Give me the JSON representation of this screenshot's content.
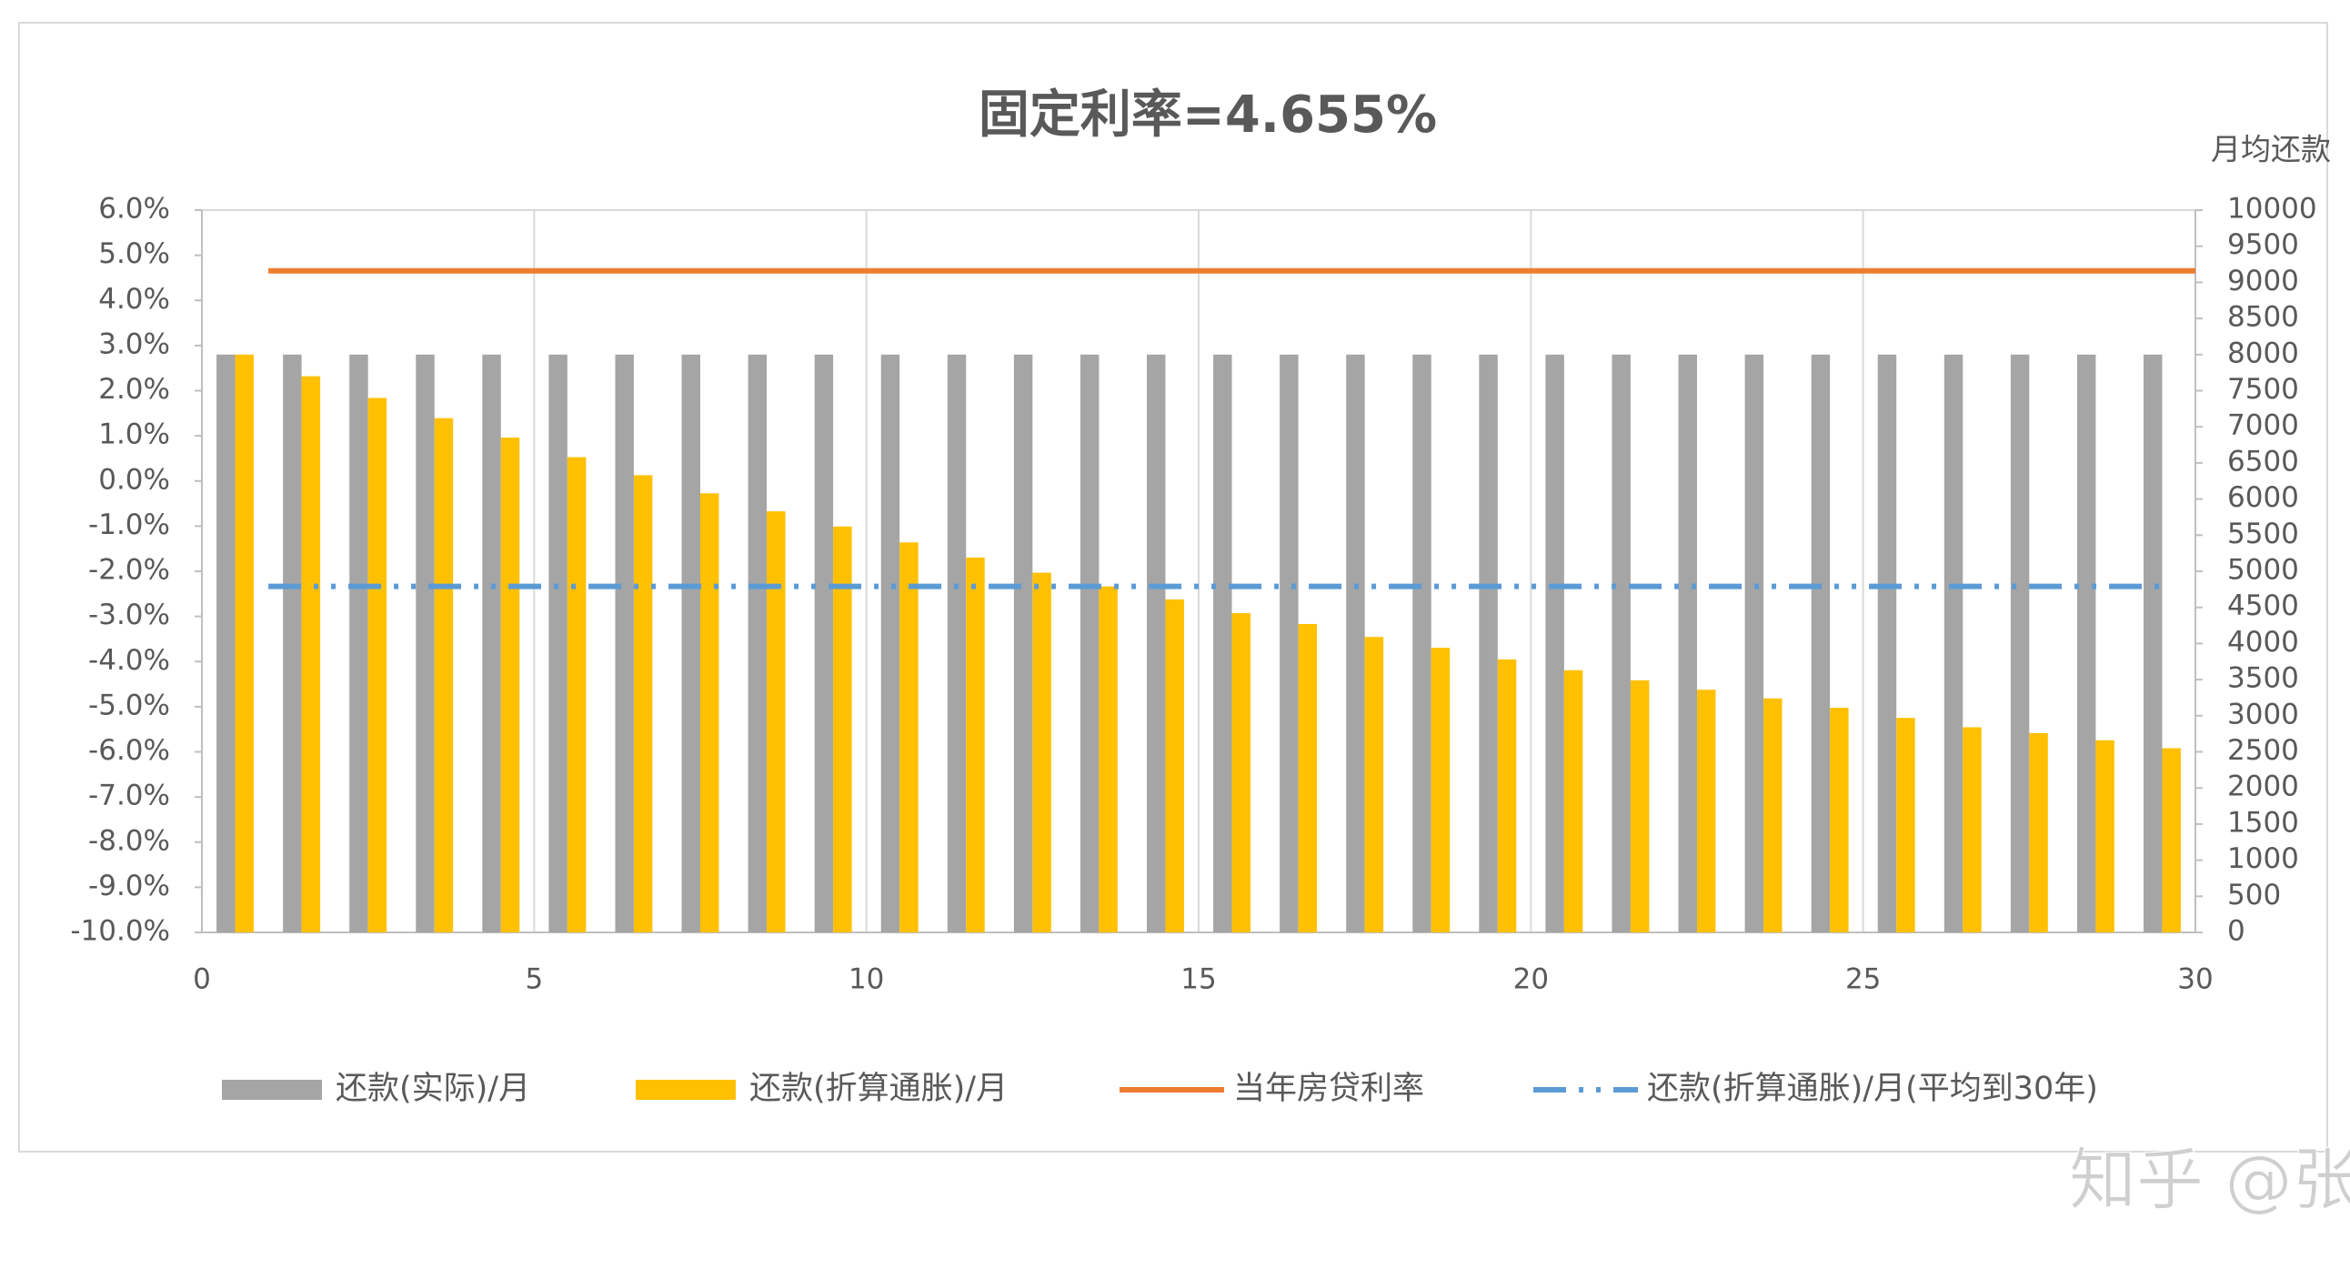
{
  "chart_data": {
    "type": "bar",
    "title": "固定利率=4.655%",
    "y2_label": "月均还款",
    "watermark": "知乎 @张瑾晟",
    "x": [
      0.5,
      1.5,
      2.5,
      3.5,
      4.5,
      5.5,
      6.5,
      7.5,
      8.5,
      9.5,
      10.5,
      11.5,
      12.5,
      13.5,
      14.5,
      15.5,
      16.5,
      17.5,
      18.5,
      19.5,
      20.5,
      21.5,
      22.5,
      23.5,
      24.5,
      25.5,
      26.5,
      27.5,
      28.5,
      29.5
    ],
    "xlim": [
      0,
      30
    ],
    "xticks": [
      0,
      5,
      10,
      15,
      20,
      25,
      30
    ],
    "ylim": [
      -10,
      6
    ],
    "yticks": [
      {
        "value": 6,
        "label": "6.0%"
      },
      {
        "value": 5,
        "label": "5.0%"
      },
      {
        "value": 4,
        "label": "4.0%"
      },
      {
        "value": 3,
        "label": "3.0%"
      },
      {
        "value": 2,
        "label": "2.0%"
      },
      {
        "value": 1,
        "label": "1.0%"
      },
      {
        "value": 0,
        "label": "0.0%"
      },
      {
        "value": -1,
        "label": "-1.0%"
      },
      {
        "value": -2,
        "label": "-2.0%"
      },
      {
        "value": -3,
        "label": "-3.0%"
      },
      {
        "value": -4,
        "label": "-4.0%"
      },
      {
        "value": -5,
        "label": "-5.0%"
      },
      {
        "value": -6,
        "label": "-6.0%"
      },
      {
        "value": -7,
        "label": "-7.0%"
      },
      {
        "value": -8,
        "label": "-8.0%"
      },
      {
        "value": -9,
        "label": "-9.0%"
      },
      {
        "value": -10,
        "label": "-10.0%"
      }
    ],
    "y2lim": [
      0,
      10000
    ],
    "y2ticks": [
      0,
      500,
      1000,
      1500,
      2000,
      2500,
      3000,
      3500,
      4000,
      4500,
      5000,
      5500,
      6000,
      6500,
      7000,
      7500,
      8000,
      8500,
      9000,
      9500,
      10000
    ],
    "grid": "x",
    "legend": "bottom",
    "series": [
      {
        "name": "还款(实际)/月",
        "type": "bar",
        "axis": "y2",
        "color": "#a5a5a5",
        "values": [
          8000,
          8000,
          8000,
          8000,
          8000,
          8000,
          8000,
          8000,
          8000,
          8000,
          8000,
          8000,
          8000,
          8000,
          8000,
          8000,
          8000,
          8000,
          8000,
          8000,
          8000,
          8000,
          8000,
          8000,
          8000,
          8000,
          8000,
          8000,
          8000,
          8000
        ]
      },
      {
        "name": "还款(折算通胀)/月",
        "type": "bar",
        "axis": "y2",
        "color": "#ffc000",
        "values": [
          8000,
          7700,
          7400,
          7120,
          6850,
          6580,
          6330,
          6080,
          5830,
          5620,
          5400,
          5190,
          4980,
          4790,
          4610,
          4420,
          4270,
          4090,
          3940,
          3780,
          3630,
          3490,
          3360,
          3240,
          3110,
          2970,
          2840,
          2760,
          2660,
          2550
        ]
      },
      {
        "name": "当年房贷利率",
        "type": "line",
        "axis": "y",
        "color": "#ed7d31",
        "x": [
          1,
          30
        ],
        "values": [
          4.655,
          4.655
        ]
      },
      {
        "name": "还款(折算通胀)/月(平均到30年)",
        "type": "line",
        "axis": "y2",
        "color": "#5b9bd5",
        "dash": "dashdotdot",
        "x": [
          1,
          29.5
        ],
        "values": [
          4790,
          4790
        ]
      }
    ]
  }
}
